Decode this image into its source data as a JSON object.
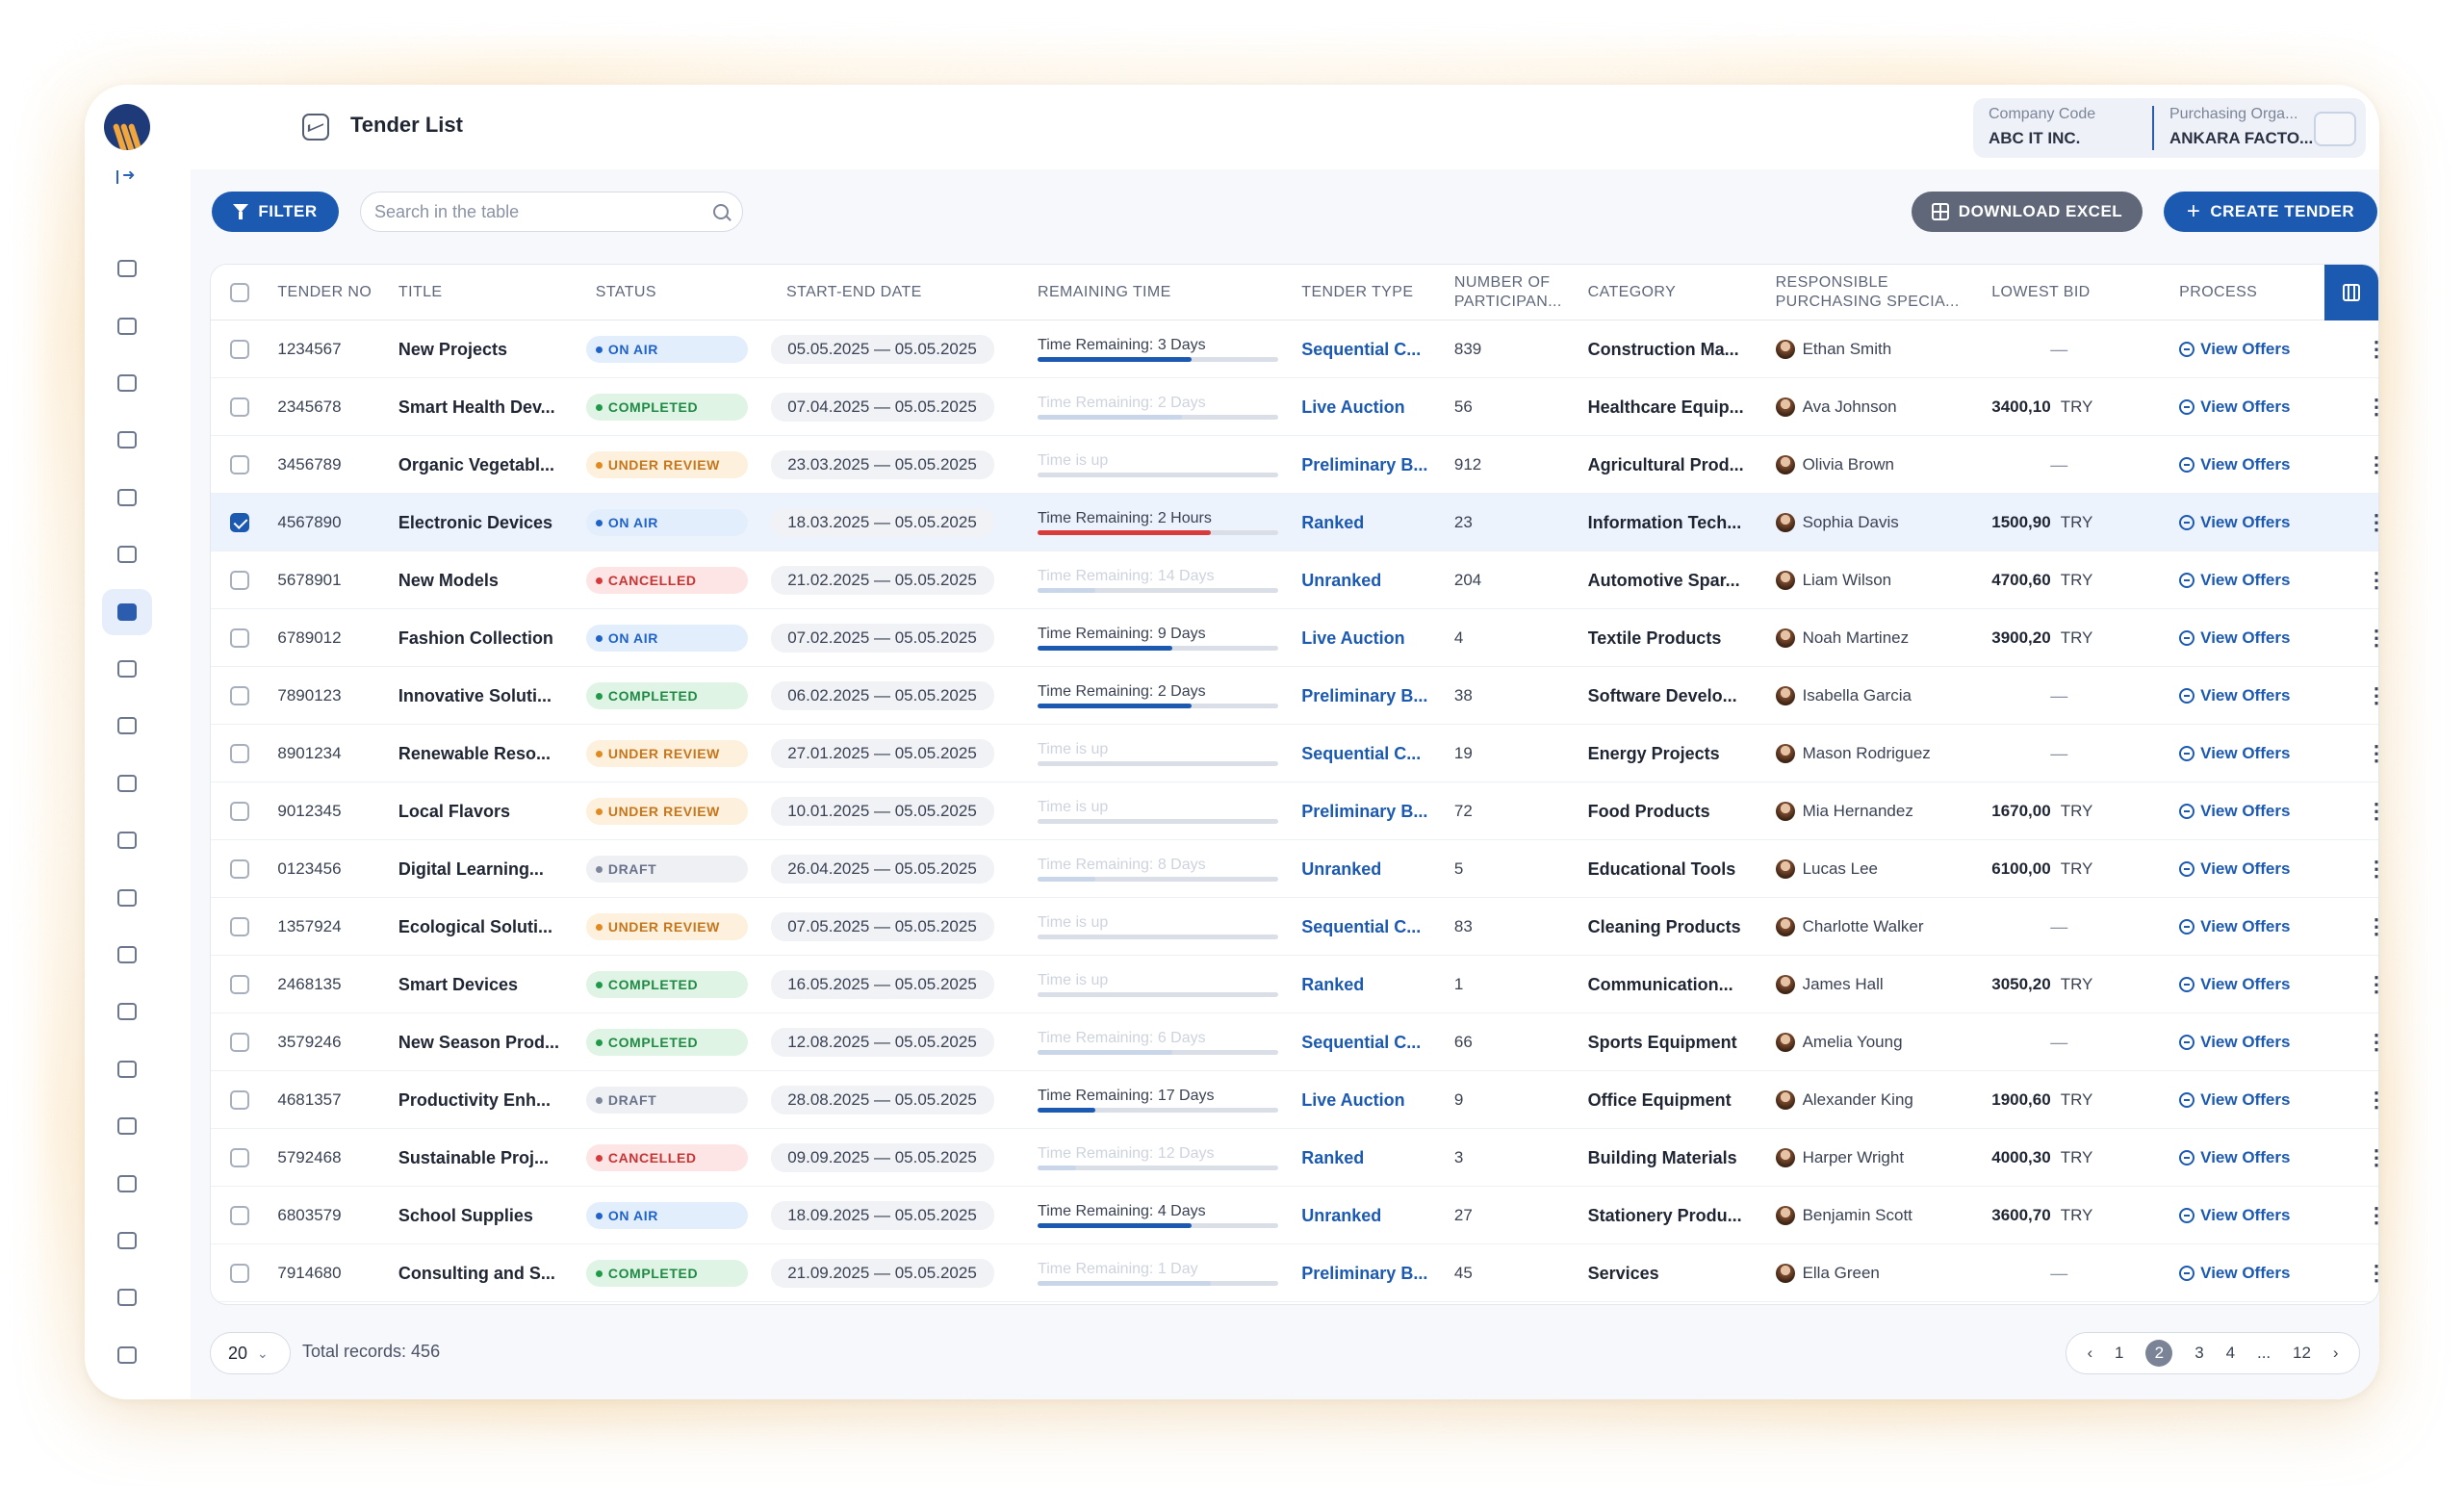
{
  "header": {
    "title": "Tender List",
    "company_code_label": "Company Code",
    "company_code_value": "ABC IT INC.",
    "purchasing_org_label": "Purchasing Orga...",
    "purchasing_org_value": "ANKARA FACTO..."
  },
  "toolbar": {
    "filter_label": "FILTER",
    "search_placeholder": "Search in the table",
    "download_label": "DOWNLOAD EXCEL",
    "create_label": "CREATE TENDER"
  },
  "sidebar": {
    "icons": [
      "collapse-arrow-icon",
      "home-icon",
      "box-icon",
      "lightning-icon",
      "archive-icon",
      "folder-icon",
      "bar-chart-icon",
      "tender-list-icon",
      "edit-chart-icon",
      "dashboard-icon",
      "clipboard-icon",
      "calendar-icon",
      "trophy-icon",
      "message-icon",
      "users-icon",
      "checklist-icon",
      "edit-icon",
      "book-icon",
      "layers-icon",
      "id-card-icon",
      "document-icon",
      "report-icon"
    ]
  },
  "table": {
    "columns": [
      "TENDER NO",
      "TITLE",
      "STATUS",
      "START-END DATE",
      "REMAINING TIME",
      "TENDER TYPE",
      "NUMBER OF PARTICIPAN...",
      "CATEGORY",
      "RESPONSIBLE PURCHASING SPECIA...",
      "LOWEST BID",
      "PROCESS"
    ],
    "view_label": "View Offers",
    "currency": "TRY",
    "rows": [
      {
        "no": "1234567",
        "title": "New Projects",
        "status": "ON AIR",
        "date": "05.05.2025 — 05.05.2025",
        "remaining": "Time Remaining: 3 Days",
        "progress": 0.8,
        "active": true,
        "type": "Sequential C...",
        "participants": "839",
        "category": "Construction Ma...",
        "person": "Ethan Smith",
        "bid": "",
        "selected": false
      },
      {
        "no": "2345678",
        "title": "Smart Health Dev...",
        "status": "COMPLETED",
        "date": "07.04.2025 — 05.05.2025",
        "remaining": "Time Remaining: 2 Days",
        "progress": 0.75,
        "active": false,
        "type": "Live Auction",
        "participants": "56",
        "category": "Healthcare Equip...",
        "person": "Ava Johnson",
        "bid": "3400,10",
        "selected": false
      },
      {
        "no": "3456789",
        "title": "Organic Vegetabl...",
        "status": "UNDER REVIEW",
        "date": "23.03.2025 — 05.05.2025",
        "remaining": "Time is up",
        "progress": 0,
        "active": false,
        "type": "Preliminary B...",
        "participants": "912",
        "category": "Agricultural Prod...",
        "person": "Olivia Brown",
        "bid": "",
        "selected": false
      },
      {
        "no": "4567890",
        "title": "Electronic Devices",
        "status": "ON AIR",
        "date": "18.03.2025 — 05.05.2025",
        "remaining": "Time Remaining: 2 Hours",
        "progress": 0.9,
        "active": true,
        "urgent": true,
        "type": "Ranked",
        "participants": "23",
        "category": "Information Tech...",
        "person": "Sophia Davis",
        "bid": "1500,90",
        "selected": true
      },
      {
        "no": "5678901",
        "title": "New Models",
        "status": "CANCELLED",
        "date": "21.02.2025 — 05.05.2025",
        "remaining": "Time Remaining: 14 Days",
        "progress": 0.3,
        "active": false,
        "type": "Unranked",
        "participants": "204",
        "category": "Automotive Spar...",
        "person": "Liam Wilson",
        "bid": "4700,60",
        "selected": false
      },
      {
        "no": "6789012",
        "title": "Fashion Collection",
        "status": "ON AIR",
        "date": "07.02.2025 — 05.05.2025",
        "remaining": "Time Remaining: 9 Days",
        "progress": 0.7,
        "active": true,
        "type": "Live Auction",
        "participants": "4",
        "category": "Textile Products",
        "person": "Noah Martinez",
        "bid": "3900,20",
        "selected": false
      },
      {
        "no": "7890123",
        "title": "Innovative Soluti...",
        "status": "COMPLETED",
        "date": "06.02.2025 — 05.05.2025",
        "remaining": "Time Remaining: 2 Days",
        "progress": 0.8,
        "active": true,
        "type": "Preliminary B...",
        "participants": "38",
        "category": "Software Develo...",
        "person": "Isabella Garcia",
        "bid": "",
        "selected": false
      },
      {
        "no": "8901234",
        "title": "Renewable Reso...",
        "status": "UNDER REVIEW",
        "date": "27.01.2025 — 05.05.2025",
        "remaining": "Time is up",
        "progress": 0,
        "active": false,
        "type": "Sequential C...",
        "participants": "19",
        "category": "Energy Projects",
        "person": "Mason Rodriguez",
        "bid": "",
        "selected": false
      },
      {
        "no": "9012345",
        "title": "Local Flavors",
        "status": "UNDER REVIEW",
        "date": "10.01.2025 — 05.05.2025",
        "remaining": "Time is up",
        "progress": 0,
        "active": false,
        "type": "Preliminary B...",
        "participants": "72",
        "category": "Food Products",
        "person": "Mia Hernandez",
        "bid": "1670,00",
        "selected": false
      },
      {
        "no": "0123456",
        "title": "Digital Learning...",
        "status": "DRAFT",
        "date": "26.04.2025 — 05.05.2025",
        "remaining": "Time Remaining: 8 Days",
        "progress": 0.3,
        "active": false,
        "type": "Unranked",
        "participants": "5",
        "category": "Educational Tools",
        "person": "Lucas Lee",
        "bid": "6100,00",
        "selected": false
      },
      {
        "no": "1357924",
        "title": "Ecological Soluti...",
        "status": "UNDER REVIEW",
        "date": "07.05.2025 — 05.05.2025",
        "remaining": "Time is up",
        "progress": 0,
        "active": false,
        "type": "Sequential C...",
        "participants": "83",
        "category": "Cleaning Products",
        "person": "Charlotte Walker",
        "bid": "",
        "selected": false
      },
      {
        "no": "2468135",
        "title": "Smart Devices",
        "status": "COMPLETED",
        "date": "16.05.2025 — 05.05.2025",
        "remaining": "Time is up",
        "progress": 0,
        "active": false,
        "type": "Ranked",
        "participants": "1",
        "category": "Communication...",
        "person": "James Hall",
        "bid": "3050,20",
        "selected": false
      },
      {
        "no": "3579246",
        "title": "New Season Prod...",
        "status": "COMPLETED",
        "date": "12.08.2025 — 05.05.2025",
        "remaining": "Time Remaining: 6 Days",
        "progress": 0.7,
        "active": false,
        "type": "Sequential C...",
        "participants": "66",
        "category": "Sports Equipment",
        "person": "Amelia Young",
        "bid": "",
        "selected": false
      },
      {
        "no": "4681357",
        "title": "Productivity Enh...",
        "status": "DRAFT",
        "date": "28.08.2025 — 05.05.2025",
        "remaining": "Time Remaining: 17 Days",
        "progress": 0.3,
        "active": true,
        "type": "Live Auction",
        "participants": "9",
        "category": "Office Equipment",
        "person": "Alexander King",
        "bid": "1900,60",
        "selected": false
      },
      {
        "no": "5792468",
        "title": "Sustainable Proj...",
        "status": "CANCELLED",
        "date": "09.09.2025 — 05.05.2025",
        "remaining": "Time Remaining: 12 Days",
        "progress": 0.2,
        "active": false,
        "type": "Ranked",
        "participants": "3",
        "category": "Building Materials",
        "person": "Harper Wright",
        "bid": "4000,30",
        "selected": false
      },
      {
        "no": "6803579",
        "title": "School Supplies",
        "status": "ON AIR",
        "date": "18.09.2025 — 05.05.2025",
        "remaining": "Time Remaining: 4 Days",
        "progress": 0.8,
        "active": true,
        "type": "Unranked",
        "participants": "27",
        "category": "Stationery Produ...",
        "person": "Benjamin Scott",
        "bid": "3600,70",
        "selected": false
      },
      {
        "no": "7914680",
        "title": "Consulting and S...",
        "status": "COMPLETED",
        "date": "21.09.2025 — 05.05.2025",
        "remaining": "Time Remaining: 1 Day",
        "progress": 0.9,
        "active": false,
        "type": "Preliminary B...",
        "participants": "45",
        "category": "Services",
        "person": "Ella Green",
        "bid": "",
        "selected": false
      }
    ]
  },
  "status_colors": {
    "ON AIR": {
      "bg": "#e3eefc",
      "fg": "#1f63c9",
      "dot": "#1f63c9"
    },
    "COMPLETED": {
      "bg": "#dff4e5",
      "fg": "#1f8a44",
      "dot": "#1f9a48"
    },
    "UNDER REVIEW": {
      "bg": "#fdf0dc",
      "fg": "#c7761b",
      "dot": "#e08a1f"
    },
    "CANCELLED": {
      "bg": "#fde5e5",
      "fg": "#c73535",
      "dot": "#d63a3a"
    },
    "DRAFT": {
      "bg": "#eef0f4",
      "fg": "#69728a",
      "dot": "#7e879a"
    }
  },
  "footer": {
    "page_size": "20",
    "total_records": "Total records: 456",
    "pages": [
      "1",
      "2",
      "3",
      "4",
      "...",
      "12"
    ],
    "current_page": "2"
  }
}
